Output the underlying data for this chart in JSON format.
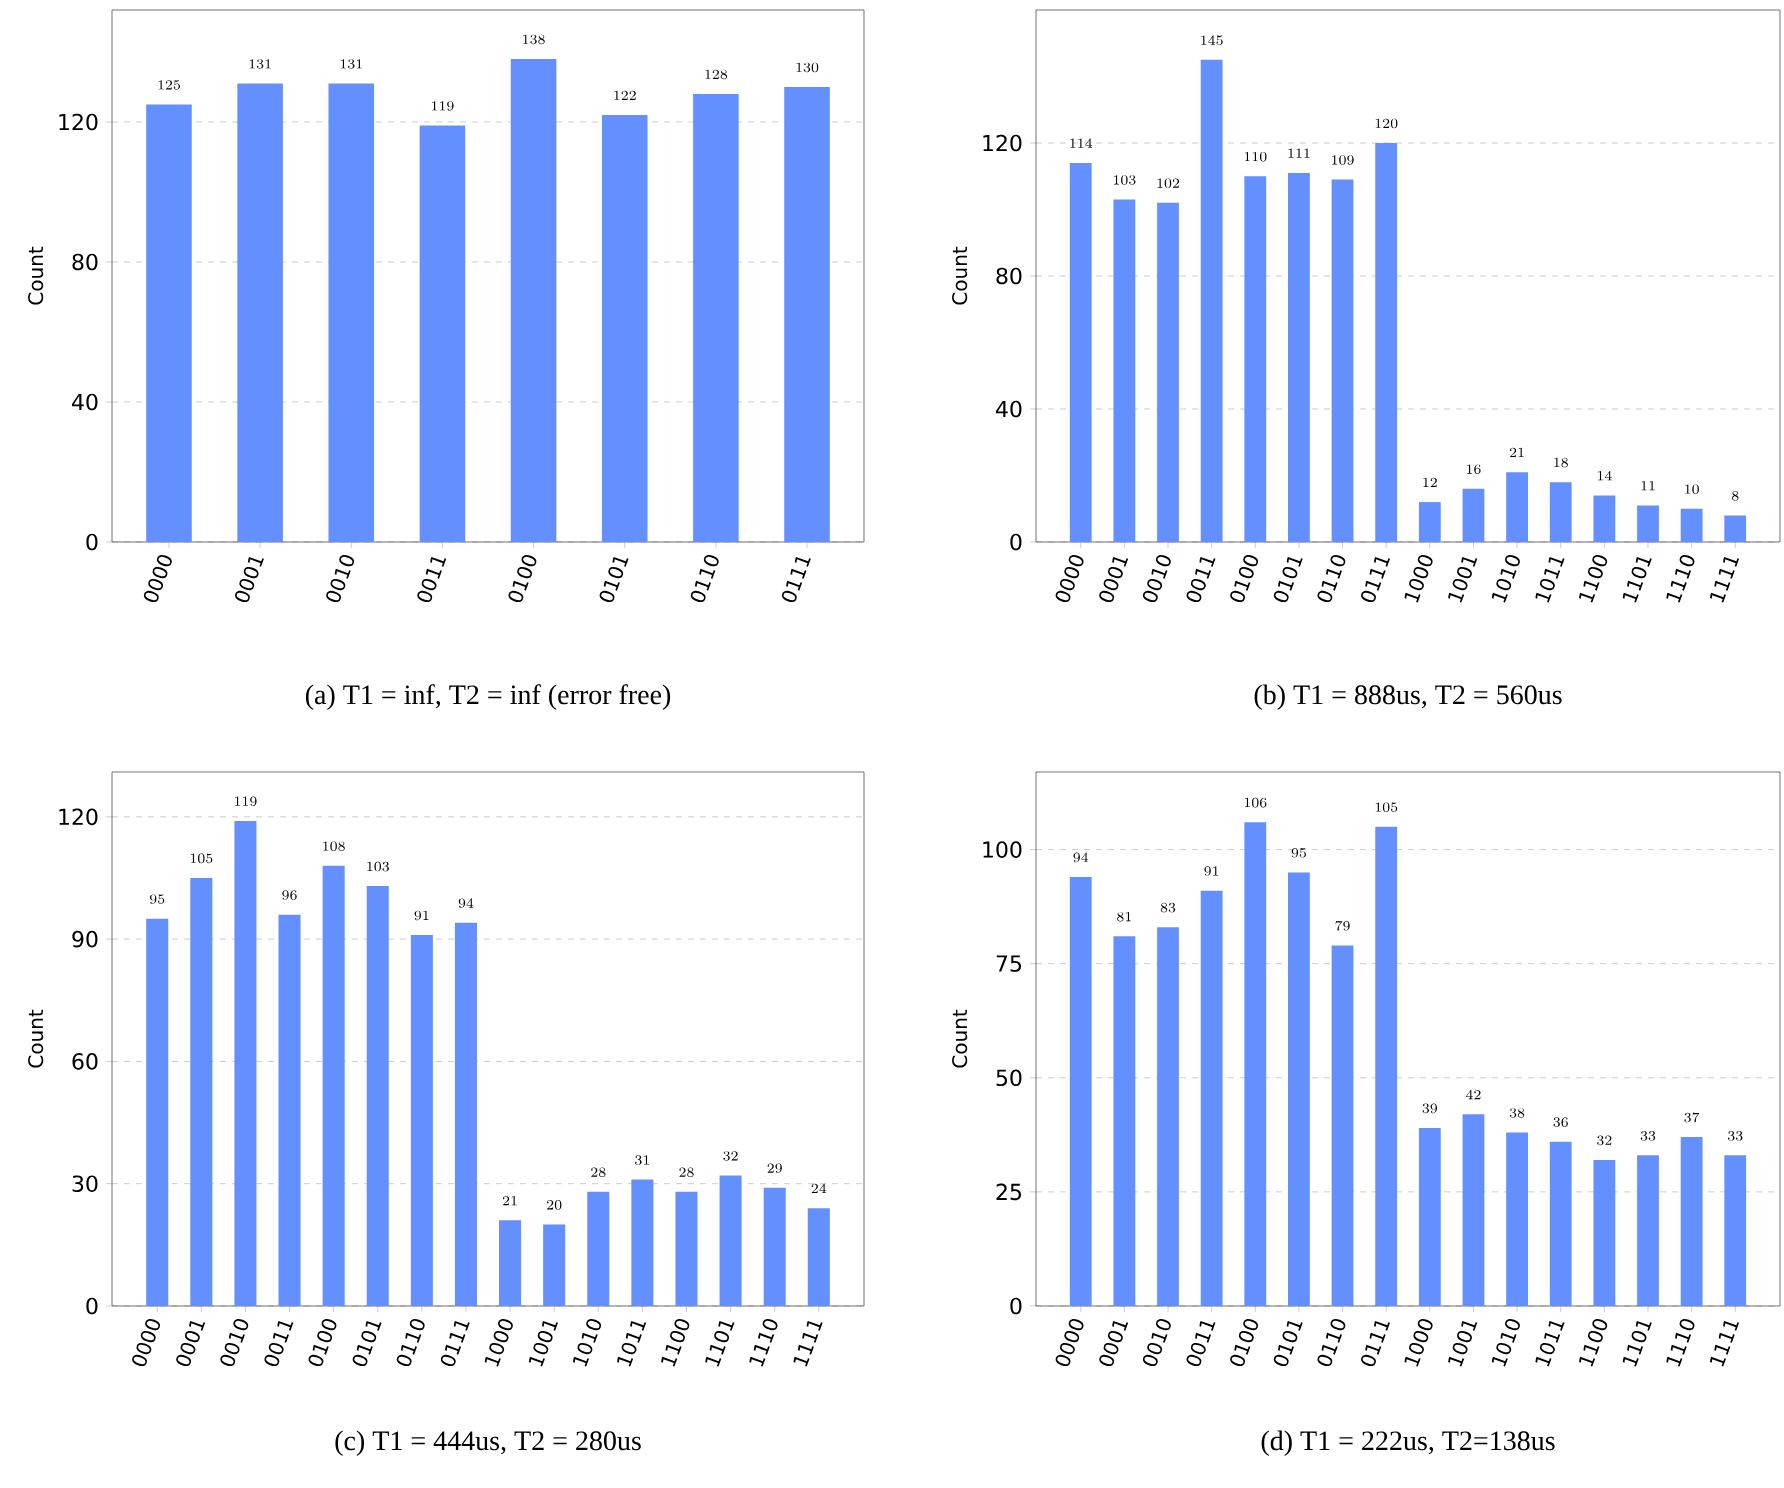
{
  "chart_data": [
    {
      "type": "bar",
      "categories": [
        "0000",
        "0001",
        "0010",
        "0011",
        "0100",
        "0101",
        "0110",
        "0111"
      ],
      "values": [
        125,
        131,
        131,
        119,
        138,
        122,
        128,
        130
      ],
      "color": "#648fff",
      "ylabel": "Count",
      "ylim": [
        0,
        152
      ],
      "yticks": [
        0,
        40,
        80,
        120
      ],
      "grid": "y",
      "data_labels": true,
      "annotations": [
        "(a) T1 = inf, T2 = inf (error free)"
      ]
    },
    {
      "type": "bar",
      "categories": [
        "0000",
        "0001",
        "0010",
        "0011",
        "0100",
        "0101",
        "0110",
        "0111",
        "1000",
        "1001",
        "1010",
        "1011",
        "1100",
        "1101",
        "1110",
        "1111"
      ],
      "values": [
        114,
        103,
        102,
        145,
        110,
        111,
        109,
        120,
        12,
        16,
        21,
        18,
        14,
        11,
        10,
        8
      ],
      "color": "#648fff",
      "ylabel": "Count",
      "ylim": [
        0,
        160
      ],
      "yticks": [
        0,
        40,
        80,
        120
      ],
      "grid": "y",
      "data_labels": true,
      "annotations": [
        "(b) T1 = 888us, T2 = 560us"
      ]
    },
    {
      "type": "bar",
      "categories": [
        "0000",
        "0001",
        "0010",
        "0011",
        "0100",
        "0101",
        "0110",
        "0111",
        "1000",
        "1001",
        "1010",
        "1011",
        "1100",
        "1101",
        "1110",
        "1111"
      ],
      "values": [
        95,
        105,
        119,
        96,
        108,
        103,
        91,
        94,
        21,
        20,
        28,
        31,
        28,
        32,
        29,
        24
      ],
      "color": "#648fff",
      "ylabel": "Count",
      "ylim": [
        0,
        131
      ],
      "yticks": [
        0,
        30,
        60,
        90,
        120
      ],
      "grid": "y",
      "data_labels": true,
      "annotations": [
        "(c) T1 = 444us, T2 = 280us"
      ]
    },
    {
      "type": "bar",
      "categories": [
        "0000",
        "0001",
        "0010",
        "0011",
        "0100",
        "0101",
        "0110",
        "0111",
        "1000",
        "1001",
        "1010",
        "1011",
        "1100",
        "1101",
        "1110",
        "1111"
      ],
      "values": [
        94,
        81,
        83,
        91,
        106,
        95,
        79,
        105,
        39,
        42,
        38,
        36,
        32,
        33,
        37,
        33
      ],
      "color": "#648fff",
      "ylabel": "Count",
      "ylim": [
        0,
        117
      ],
      "yticks": [
        0,
        25,
        50,
        75,
        100
      ],
      "grid": "y",
      "data_labels": true,
      "annotations": [
        "(d) T1 = 222us, T2=138us"
      ]
    }
  ]
}
